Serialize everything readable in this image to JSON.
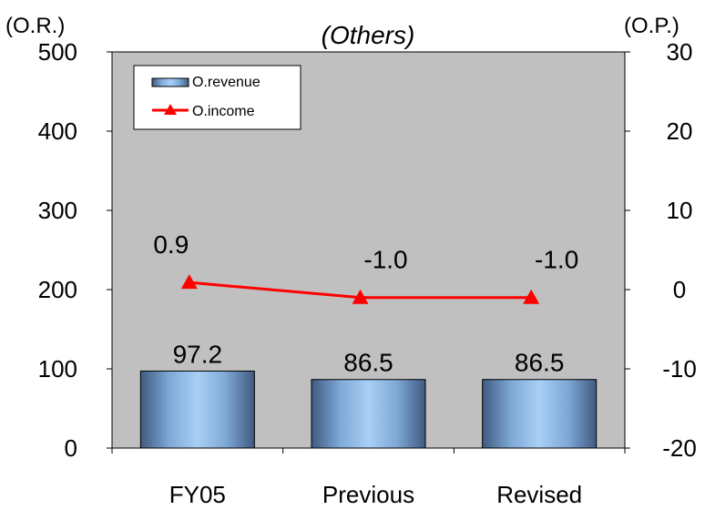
{
  "chart_data": {
    "type": "bar",
    "title": "(Others)",
    "categories": [
      "FY05",
      "Previous",
      "Revised"
    ],
    "y_left_label": "(O.R.)",
    "y_right_label": "(O.P.)",
    "y_left_ticks": [
      "0",
      "100",
      "200",
      "300",
      "400",
      "500"
    ],
    "y_right_ticks": [
      "-20",
      "-10",
      "0",
      "10",
      "20",
      "30"
    ],
    "ylim_left": [
      0,
      500
    ],
    "ylim_right": [
      -20,
      30
    ],
    "series": [
      {
        "name": "O.revenue",
        "type": "bar",
        "axis": "left",
        "values": [
          97.2,
          86.5,
          86.5
        ],
        "labels": [
          "97.2",
          "86.5",
          "86.5"
        ]
      },
      {
        "name": "O.income",
        "type": "line",
        "axis": "right",
        "values": [
          0.9,
          -1.0,
          -1.0
        ],
        "labels": [
          "0.9",
          "-1.0",
          "-1.0"
        ],
        "color": "#ff0000"
      }
    ],
    "legend_position": "top-left",
    "plot_background": "#c0c0c0",
    "grid": false
  }
}
